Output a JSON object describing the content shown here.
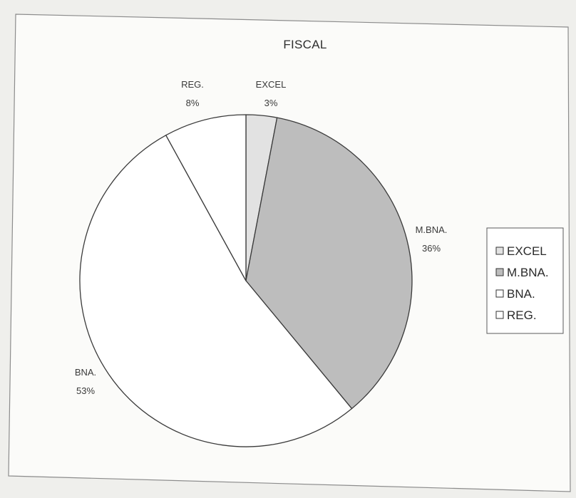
{
  "chart_data": {
    "type": "pie",
    "title": "FISCAL",
    "categories": [
      "EXCEL",
      "M.BNA.",
      "BNA.",
      "REG."
    ],
    "values": [
      3,
      36,
      53,
      8
    ],
    "data_labels": [
      "3%",
      "36%",
      "53%",
      "8%"
    ],
    "colors": [
      "#e2e2e2",
      "#bdbdbd",
      "#ffffff",
      "#ffffff"
    ],
    "legend": {
      "position": "right"
    }
  }
}
